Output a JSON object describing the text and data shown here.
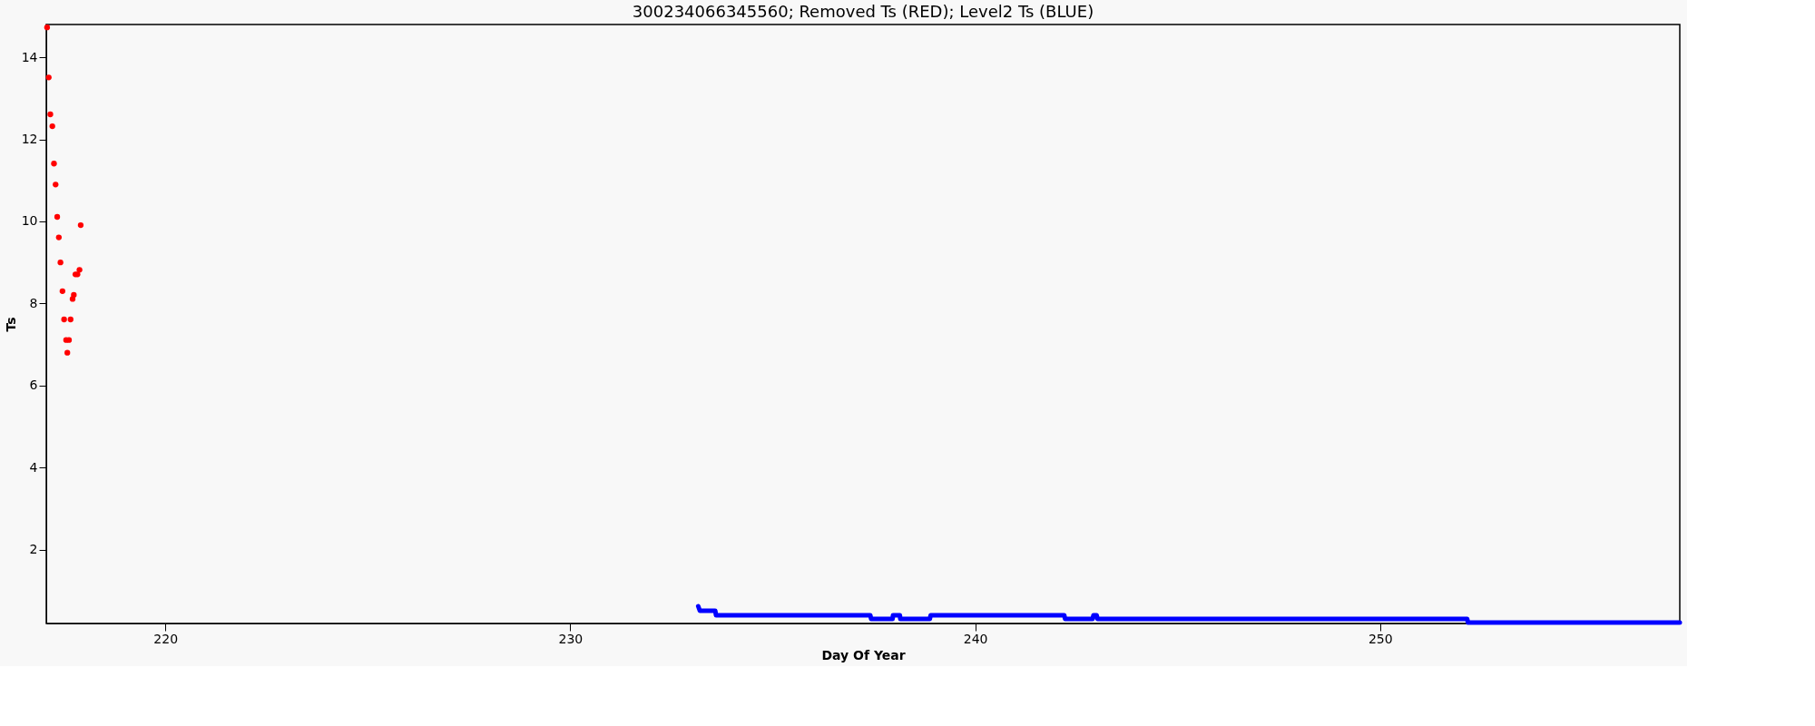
{
  "chart_data": {
    "type": "scatter",
    "title": "300234066345560; Removed Ts (RED); Level2 Ts (BLUE)",
    "xlabel": "Day Of Year",
    "ylabel": "Ts",
    "xlim": [
      217.06,
      257.4
    ],
    "xticks": [
      220,
      230,
      240,
      250
    ],
    "ylim": [
      0.2,
      14.8
    ],
    "yticks": [
      2,
      4,
      6,
      8,
      10,
      12,
      14
    ],
    "grid": false,
    "series": [
      {
        "color": "#ff0000",
        "marker": "circle",
        "x": [
          217.08,
          217.12,
          217.16,
          217.21,
          217.25,
          217.29,
          217.33,
          217.37,
          217.41,
          217.46,
          217.5,
          217.66,
          217.55,
          217.62,
          217.58,
          217.71,
          217.74,
          217.78,
          217.83,
          217.88,
          217.91
        ],
        "values": [
          14.73,
          13.51,
          12.61,
          12.32,
          11.41,
          10.9,
          10.11,
          9.61,
          9.0,
          8.3,
          7.61,
          7.61,
          7.11,
          7.11,
          6.8,
          8.11,
          8.21,
          8.71,
          8.71,
          8.82,
          9.91
        ]
      },
      {
        "type": "line",
        "color": "#0000ff",
        "line_style": "solid",
        "x": [
          233.16,
          233.2,
          233.58,
          233.6,
          237.41,
          237.43,
          237.96,
          237.97,
          238.14,
          238.15,
          238.88,
          238.9,
          242.2,
          242.22,
          242.9,
          242.92,
          243.0,
          243.02,
          252.15,
          252.17,
          257.4
        ],
        "values": [
          0.62,
          0.51,
          0.51,
          0.4,
          0.4,
          0.31,
          0.31,
          0.4,
          0.4,
          0.31,
          0.31,
          0.4,
          0.4,
          0.31,
          0.31,
          0.4,
          0.4,
          0.31,
          0.31,
          0.22,
          0.22
        ]
      }
    ]
  }
}
